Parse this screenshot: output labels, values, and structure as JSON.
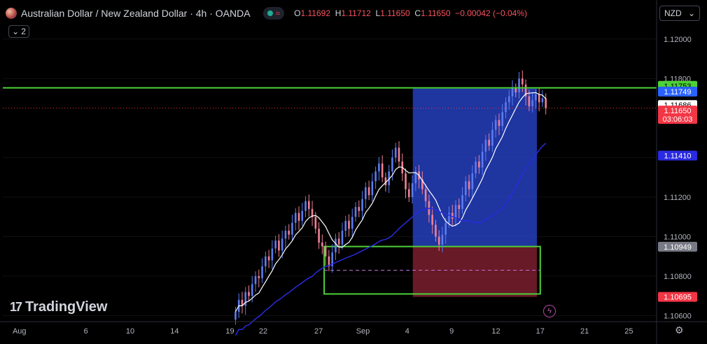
{
  "header": {
    "title": "Australian Dollar / New Zealand Dollar · 4h · OANDA",
    "ohlc": [
      {
        "k": "O",
        "v": "1.11692"
      },
      {
        "k": "H",
        "v": "1.11712"
      },
      {
        "k": "L",
        "v": "1.11650"
      },
      {
        "k": "C",
        "v": "1.11650"
      }
    ],
    "change": "−0.00042 (−0.04%)",
    "indicator_count": "2",
    "currency": "NZD"
  },
  "branding": {
    "logo_text": "TradingView"
  },
  "colors": {
    "background": "#000000",
    "up": "#5b7bf0",
    "down": "#f08095",
    "ma_fast": "#ffffff",
    "ma_slow": "#2a2ae0",
    "level_line": "#4cd137",
    "target_zone": "#2947d6",
    "stop_zone": "#7a1e2e",
    "price_label": "#f23645"
  },
  "chart_data": {
    "type": "candlestick",
    "symbol": "AUDNZD",
    "timeframe": "4h",
    "ylim": [
      1.1057,
      1.1207
    ],
    "y_ticks": [
      "1.12000",
      "1.11800",
      "1.11400",
      "1.11200",
      "1.11000",
      "1.10800",
      "1.10600"
    ],
    "x_ticks": [
      {
        "label": "Aug",
        "day": 0
      },
      {
        "label": "6",
        "day": 6
      },
      {
        "label": "10",
        "day": 10
      },
      {
        "label": "14",
        "day": 14
      },
      {
        "label": "19",
        "day": 19
      },
      {
        "label": "22",
        "day": 22
      },
      {
        "label": "27",
        "day": 27
      },
      {
        "label": "Sep",
        "day": 31
      },
      {
        "label": "4",
        "day": 35
      },
      {
        "label": "9",
        "day": 39
      },
      {
        "label": "12",
        "day": 43
      },
      {
        "label": "17",
        "day": 47
      },
      {
        "label": "21",
        "day": 51
      },
      {
        "label": "25",
        "day": 55
      }
    ],
    "xlim": [
      -1.5,
      57.5
    ],
    "closes": [
      1.1062,
      1.1068,
      1.1065,
      1.1072,
      1.107,
      1.1076,
      1.108,
      1.1079,
      1.1085,
      1.109,
      1.1088,
      1.1094,
      1.1098,
      1.1093,
      1.1099,
      1.1103,
      1.1101,
      1.1107,
      1.1112,
      1.1108,
      1.1113,
      1.1118,
      1.1114,
      1.111,
      1.1104,
      1.1097,
      1.1095,
      1.109,
      1.1085,
      1.1092,
      1.1099,
      1.1096,
      1.1103,
      1.1108,
      1.1104,
      1.111,
      1.1115,
      1.1113,
      1.1119,
      1.1125,
      1.1121,
      1.1128,
      1.1133,
      1.1137,
      1.113,
      1.1126,
      1.1133,
      1.114,
      1.1145,
      1.1138,
      1.1132,
      1.1124,
      1.112,
      1.1127,
      1.1133,
      1.1129,
      1.1124,
      1.1118,
      1.1111,
      1.1106,
      1.11,
      1.1096,
      1.1101,
      1.1107,
      1.1112,
      1.1109,
      1.1116,
      1.1114,
      1.1121,
      1.1128,
      1.1124,
      1.1132,
      1.1138,
      1.1135,
      1.1143,
      1.1149,
      1.1146,
      1.1154,
      1.1159,
      1.1156,
      1.1163,
      1.1168,
      1.1171,
      1.1175,
      1.1173,
      1.118,
      1.1177,
      1.1171,
      1.1166,
      1.1169,
      1.1172,
      1.1168,
      1.117,
      1.1165
    ],
    "candle_start_day": 19.5,
    "candle_end_day": 47.5,
    "levels": {
      "resistance": 1.11753,
      "target": 1.11749,
      "last": 1.11686,
      "close": 1.1165,
      "countdown": "03:06:03",
      "ma_slow_value": 1.1141,
      "entry": 1.10949,
      "stop": 1.10695
    },
    "box": {
      "day_start": 27.5,
      "day_end": 47.0,
      "low": 1.1071,
      "high": 1.1095
    },
    "entry_mid": 1.1083,
    "position": {
      "day_start": 35.5,
      "day_end": 46.7,
      "target": 1.11749,
      "entry": 1.10949,
      "stop": 1.10695
    },
    "level_labels": [
      "1.11753",
      "1.11749",
      "1.11686",
      "1.11650",
      "03:06:03",
      "1.11410",
      "1.10949",
      "1.10695"
    ]
  }
}
